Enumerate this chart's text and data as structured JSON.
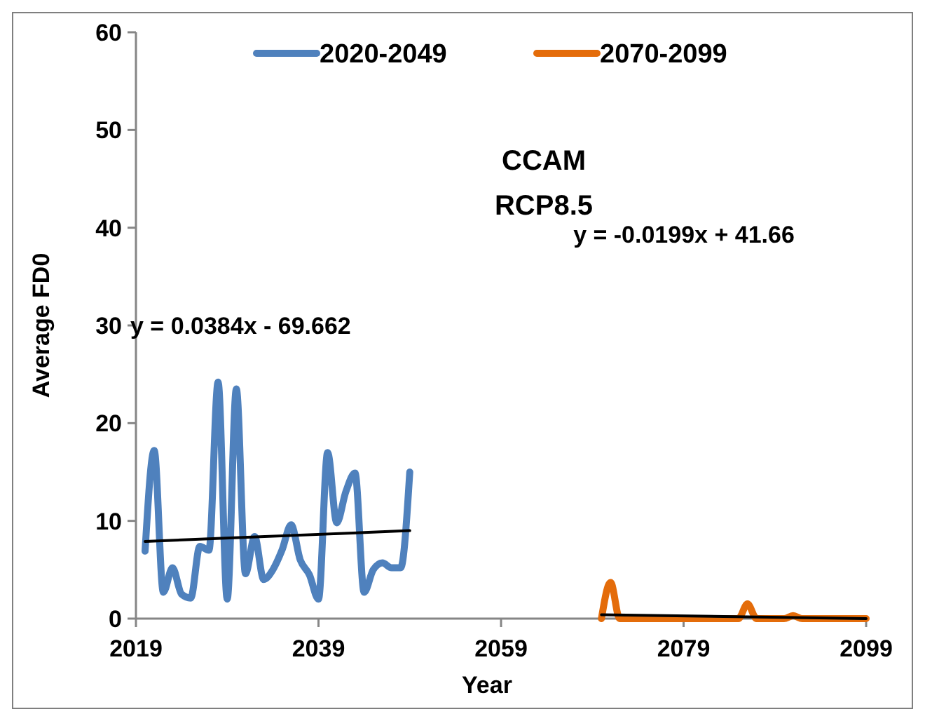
{
  "chart_data": {
    "type": "line",
    "xlabel": "Year",
    "ylabel": "Average FD0",
    "annotations": [
      "CCAM",
      "RCP8.5",
      "y = -0.0199x + 41.66",
      "y = 0.0384x - 69.662"
    ],
    "xlim": [
      2019,
      2099
    ],
    "xticks": [
      2019,
      2039,
      2059,
      2079,
      2099
    ],
    "ylim": [
      0,
      60
    ],
    "yticks": [
      0,
      10,
      20,
      30,
      40,
      50,
      60
    ],
    "legend": "top",
    "grid": false,
    "marker": "none",
    "series": [
      {
        "name": "2020-2049",
        "color": "#4f81bd",
        "x": [
          2020,
          2021,
          2022,
          2023,
          2024,
          2025,
          2026,
          2027,
          2028,
          2029,
          2030,
          2031,
          2032,
          2033,
          2034,
          2035,
          2036,
          2037,
          2038,
          2039,
          2040,
          2041,
          2042,
          2043,
          2044,
          2045,
          2046,
          2047,
          2048,
          2049
        ],
        "values": [
          6.9,
          17.2,
          2.7,
          5.2,
          2.5,
          2.1,
          7.4,
          7,
          24.2,
          2,
          23.5,
          4.6,
          8.4,
          4,
          5,
          7,
          9.6,
          6,
          4.5,
          2,
          17,
          9.8,
          13,
          14.9,
          2.7,
          5,
          5.7,
          5.2,
          5.2,
          15
        ]
      },
      {
        "name": "2070-2099",
        "color": "#e46c0a",
        "x": [
          2070,
          2071,
          2072,
          2073,
          2074,
          2075,
          2076,
          2077,
          2078,
          2079,
          2080,
          2081,
          2082,
          2083,
          2084,
          2085,
          2086,
          2087,
          2088,
          2089,
          2090,
          2091,
          2092,
          2093,
          2094,
          2095,
          2096,
          2097,
          2098,
          2099
        ],
        "values": [
          0,
          3.7,
          0,
          0,
          0,
          0,
          0,
          0,
          0,
          0,
          0,
          0,
          0,
          0,
          0,
          0,
          1.5,
          0,
          0,
          0,
          0,
          0.3,
          0,
          0,
          0,
          0,
          0,
          0,
          0,
          0
        ]
      },
      {
        "type": "line",
        "color": "#000000",
        "x": [
          2020,
          2049
        ],
        "values": [
          7.9,
          9.0
        ]
      },
      {
        "type": "line",
        "color": "#000000",
        "x": [
          2070,
          2099
        ],
        "values": [
          0.4,
          0
        ]
      }
    ]
  }
}
